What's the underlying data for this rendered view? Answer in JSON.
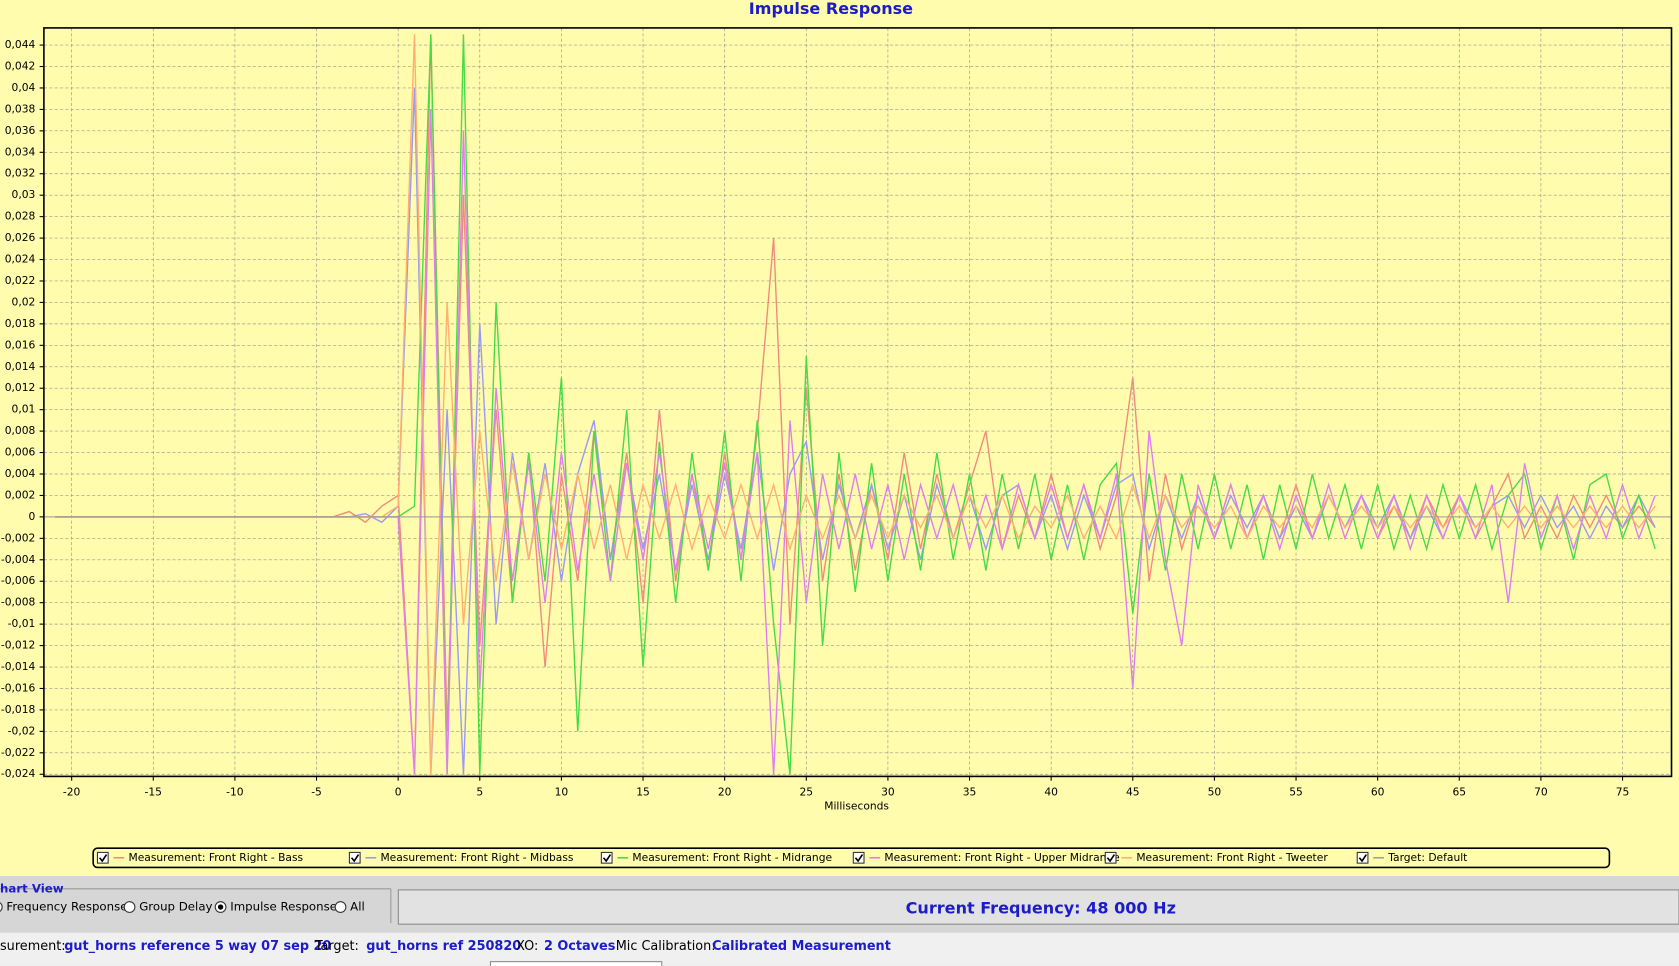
{
  "chart_data": {
    "type": "line",
    "title": "Impulse Response",
    "x_label": "Milliseconds",
    "xlim": [
      -21.7,
      78
    ],
    "ylim": [
      -0.0242,
      0.0456
    ],
    "grid": true,
    "legend": "bottom",
    "xticks": [
      -20,
      -15,
      -10,
      -5,
      0,
      5,
      10,
      15,
      20,
      25,
      30,
      35,
      40,
      45,
      50,
      55,
      60,
      65,
      70,
      75
    ],
    "yticks": [
      {
        "value": 0.044,
        "label": "0,044"
      },
      {
        "value": 0.042,
        "label": "0,042"
      },
      {
        "value": 0.04,
        "label": "0,04"
      },
      {
        "value": 0.038,
        "label": "0,038"
      },
      {
        "value": 0.036,
        "label": "0,036"
      },
      {
        "value": 0.034,
        "label": "0,034"
      },
      {
        "value": 0.032,
        "label": "0,032"
      },
      {
        "value": 0.03,
        "label": "0,03"
      },
      {
        "value": 0.028,
        "label": "0,028"
      },
      {
        "value": 0.026,
        "label": "0,026"
      },
      {
        "value": 0.024,
        "label": "0,024"
      },
      {
        "value": 0.022,
        "label": "0,022"
      },
      {
        "value": 0.02,
        "label": "0,02"
      },
      {
        "value": 0.018,
        "label": "0,018"
      },
      {
        "value": 0.016,
        "label": "0,016"
      },
      {
        "value": 0.014,
        "label": "0,014"
      },
      {
        "value": 0.012,
        "label": "0,012"
      },
      {
        "value": 0.01,
        "label": "0,01"
      },
      {
        "value": 0.008,
        "label": "0,008"
      },
      {
        "value": 0.006,
        "label": "0,006"
      },
      {
        "value": 0.004,
        "label": "0,004"
      },
      {
        "value": 0.002,
        "label": "0,002"
      },
      0,
      {
        "value": -0.002,
        "label": "-0,002"
      },
      {
        "value": -0.004,
        "label": "-0,004"
      },
      {
        "value": -0.006,
        "label": "-0,006"
      },
      {
        "value": -0.008,
        "label": "-0,008"
      },
      {
        "value": -0.01,
        "label": "-0,01"
      },
      {
        "value": -0.012,
        "label": "-0,012"
      },
      {
        "value": -0.014,
        "label": "-0,014"
      },
      {
        "value": -0.016,
        "label": "-0,016"
      },
      {
        "value": -0.018,
        "label": "-0,018"
      },
      {
        "value": -0.02,
        "label": "-0,02"
      },
      {
        "value": -0.022,
        "label": "-0,022"
      },
      {
        "value": -0.024,
        "label": "-0,024"
      }
    ],
    "x": [
      -21,
      -20,
      -19,
      -18,
      -17,
      -16,
      -15,
      -14,
      -13,
      -12,
      -11,
      -10,
      -9,
      -8,
      -7,
      -6,
      -5,
      -4,
      -3,
      -2,
      -1,
      0,
      1,
      2,
      3,
      4,
      5,
      6,
      7,
      8,
      9,
      10,
      11,
      12,
      13,
      14,
      15,
      16,
      17,
      18,
      19,
      20,
      21,
      22,
      23,
      24,
      25,
      26,
      27,
      28,
      29,
      30,
      31,
      32,
      33,
      34,
      35,
      36,
      37,
      38,
      39,
      40,
      41,
      42,
      43,
      44,
      45,
      46,
      47,
      48,
      49,
      50,
      51,
      52,
      53,
      54,
      55,
      56,
      57,
      58,
      59,
      60,
      61,
      62,
      63,
      64,
      65,
      66,
      67,
      68,
      69,
      70,
      71,
      72,
      73,
      74,
      75,
      76,
      77
    ],
    "series": [
      {
        "name": "Measurement: Front Right - Bass",
        "color": "#f08c7c",
        "values": [
          0,
          0,
          0,
          0,
          0,
          0,
          0,
          0,
          0,
          0,
          0,
          0,
          0,
          0,
          0,
          0,
          0,
          0,
          0.0005,
          -0.0005,
          0.001,
          0.002,
          -0.024,
          0.045,
          -0.02,
          0.03,
          -0.012,
          0.01,
          -0.008,
          0.006,
          -0.014,
          0.004,
          -0.006,
          0.008,
          -0.004,
          0.006,
          -0.008,
          0.01,
          -0.006,
          0.004,
          -0.005,
          0.006,
          -0.004,
          0.008,
          0.026,
          -0.01,
          0.012,
          -0.006,
          0.004,
          -0.005,
          0.003,
          -0.004,
          0.006,
          -0.003,
          0.004,
          -0.002,
          0.003,
          0.008,
          -0.003,
          0.002,
          -0.002,
          0.004,
          -0.002,
          0.003,
          -0.003,
          0.002,
          0.013,
          -0.006,
          0.004,
          -0.003,
          0.002,
          -0.002,
          0.003,
          -0.002,
          0.002,
          -0.002,
          0.003,
          -0.002,
          0.002,
          -0.001,
          0.002,
          -0.002,
          0.001,
          -0.002,
          0.002,
          -0.001,
          0.002,
          -0.002,
          0.001,
          0.004,
          -0.002,
          0.001,
          -0.002,
          0.002,
          -0.001,
          0.002,
          -0.001,
          0.001,
          -0.001
        ]
      },
      {
        "name": "Measurement: Front Right - Midbass",
        "color": "#9a9af4",
        "values": [
          0,
          0,
          0,
          0,
          0,
          0,
          0,
          0,
          0,
          0,
          0,
          0,
          0,
          0,
          0,
          0,
          0,
          0,
          0,
          0.0003,
          -0.0005,
          0.001,
          0.04,
          -0.024,
          0.01,
          -0.024,
          0.018,
          -0.01,
          0.006,
          -0.004,
          0.005,
          -0.006,
          0.004,
          0.009,
          -0.004,
          0.005,
          -0.003,
          0.004,
          -0.005,
          0.003,
          -0.004,
          0.004,
          -0.003,
          0.006,
          -0.005,
          0.004,
          0.007,
          -0.004,
          0.003,
          -0.002,
          0.003,
          -0.003,
          0.002,
          -0.004,
          0.003,
          -0.002,
          0.002,
          -0.003,
          0.002,
          0.003,
          -0.002,
          0.002,
          -0.003,
          0.002,
          -0.002,
          0.003,
          0.004,
          -0.003,
          0.002,
          -0.002,
          0.002,
          -0.002,
          0.002,
          -0.001,
          0.002,
          -0.002,
          0.001,
          -0.002,
          0.002,
          -0.001,
          0.002,
          -0.001,
          0.002,
          -0.002,
          0.001,
          -0.002,
          0.002,
          -0.001,
          0.001,
          0.002,
          -0.001,
          0.002,
          -0.001,
          0.001,
          -0.002,
          0.001,
          -0.001,
          0.002,
          -0.001
        ]
      },
      {
        "name": "Measurement: Front Right - Midrange",
        "color": "#46dc46",
        "values": [
          0,
          0,
          0,
          0,
          0,
          0,
          0,
          0,
          0,
          0,
          0,
          0,
          0,
          0,
          0,
          0,
          0,
          0,
          0,
          0,
          0,
          0,
          0.001,
          0.045,
          -0.024,
          0.045,
          -0.024,
          0.02,
          -0.008,
          0.006,
          -0.006,
          0.013,
          -0.02,
          0.008,
          -0.006,
          0.01,
          -0.014,
          0.007,
          -0.008,
          0.006,
          -0.005,
          0.008,
          -0.006,
          0.009,
          -0.01,
          -0.024,
          0.015,
          -0.012,
          0.006,
          -0.007,
          0.005,
          -0.006,
          0.004,
          -0.005,
          0.006,
          -0.004,
          0.004,
          -0.005,
          0.004,
          -0.003,
          0.004,
          -0.004,
          0.003,
          -0.004,
          0.003,
          0.005,
          -0.009,
          0.004,
          -0.005,
          0.004,
          -0.003,
          0.004,
          -0.003,
          0.003,
          -0.004,
          0.003,
          -0.003,
          0.004,
          -0.002,
          0.003,
          -0.003,
          0.003,
          -0.003,
          0.002,
          -0.003,
          0.003,
          -0.002,
          0.003,
          -0.003,
          0.002,
          0.004,
          -0.003,
          0.002,
          -0.004,
          0.003,
          0.004,
          -0.002,
          0.002,
          -0.003
        ]
      },
      {
        "name": "Measurement: Front Right - Upper Midrange",
        "color": "#e07ef0",
        "values": [
          0,
          0,
          0,
          0,
          0,
          0,
          0,
          0,
          0,
          0,
          0,
          0,
          0,
          0,
          0,
          0,
          0,
          0,
          0,
          0,
          0,
          0,
          -0.024,
          0.038,
          -0.024,
          0.036,
          -0.016,
          0.012,
          -0.006,
          0.005,
          -0.008,
          0.006,
          -0.005,
          0.004,
          -0.006,
          0.005,
          -0.004,
          0.006,
          -0.005,
          0.004,
          -0.003,
          0.005,
          -0.004,
          0.006,
          -0.024,
          0.009,
          -0.008,
          0.004,
          -0.003,
          0.004,
          -0.003,
          0.003,
          -0.004,
          0.003,
          -0.002,
          0.003,
          -0.003,
          0.002,
          -0.003,
          0.003,
          -0.002,
          0.003,
          -0.002,
          0.003,
          -0.002,
          0.004,
          -0.016,
          0.008,
          -0.004,
          -0.012,
          0.003,
          -0.002,
          0.003,
          -0.002,
          0.002,
          -0.003,
          0.002,
          -0.002,
          0.003,
          -0.002,
          0.002,
          -0.002,
          0.002,
          -0.003,
          0.002,
          -0.002,
          0.002,
          -0.002,
          0.003,
          -0.008,
          0.005,
          -0.002,
          0.002,
          -0.003,
          0.002,
          -0.002,
          0.003,
          -0.002,
          0.002
        ]
      },
      {
        "name": "Measurement: Front Right - Tweeter",
        "color": "#ffb070",
        "values": [
          0,
          0,
          0,
          0,
          0,
          0,
          0,
          0,
          0,
          0,
          0,
          0,
          0,
          0,
          0,
          0,
          0,
          0,
          0,
          0,
          0,
          0.001,
          0.045,
          -0.024,
          0.02,
          -0.01,
          0.008,
          -0.006,
          0.005,
          -0.004,
          0.004,
          -0.003,
          0.004,
          -0.003,
          0.003,
          -0.004,
          0.003,
          -0.002,
          0.003,
          -0.003,
          0.002,
          -0.002,
          0.003,
          -0.002,
          0.003,
          -0.003,
          0.002,
          -0.002,
          0.002,
          -0.002,
          0.002,
          -0.002,
          0.002,
          -0.001,
          0.002,
          -0.002,
          0.002,
          -0.001,
          0.002,
          -0.002,
          0.001,
          -0.001,
          0.002,
          -0.002,
          0.001,
          -0.002,
          0.003,
          -0.002,
          0.002,
          -0.001,
          0.001,
          -0.001,
          0.001,
          -0.002,
          0.001,
          -0.001,
          0.001,
          -0.001,
          0.002,
          -0.001,
          0.001,
          -0.001,
          0.001,
          -0.001,
          0.001,
          -0.001,
          0.001,
          -0.001,
          0.001,
          -0.001,
          0.001,
          -0.001,
          0.001,
          -0.001,
          0.001,
          -0.001,
          0.001,
          -0.001,
          0.001
        ]
      },
      {
        "name": "Target: Default",
        "color": "#a0a0a0"
      }
    ]
  },
  "ui": {
    "group_title": "hart View",
    "radios": [
      {
        "label": "Frequency Response",
        "selected": false
      },
      {
        "label": "Group Delay",
        "selected": false
      },
      {
        "label": "Impulse Response",
        "selected": true
      },
      {
        "label": "All",
        "selected": false
      }
    ],
    "current_frequency": "Current Frequency: 48 000 Hz",
    "status": [
      {
        "label": "surement:",
        "value": "gut_horns reference 5 way 07 sep 20"
      },
      {
        "label": "Target:",
        "value": "gut_horns ref 250820"
      },
      {
        "label": "XO:",
        "value": "2 Octaves"
      },
      {
        "label": "Mic Calibration:",
        "value": "Calibrated Measurement"
      }
    ]
  }
}
